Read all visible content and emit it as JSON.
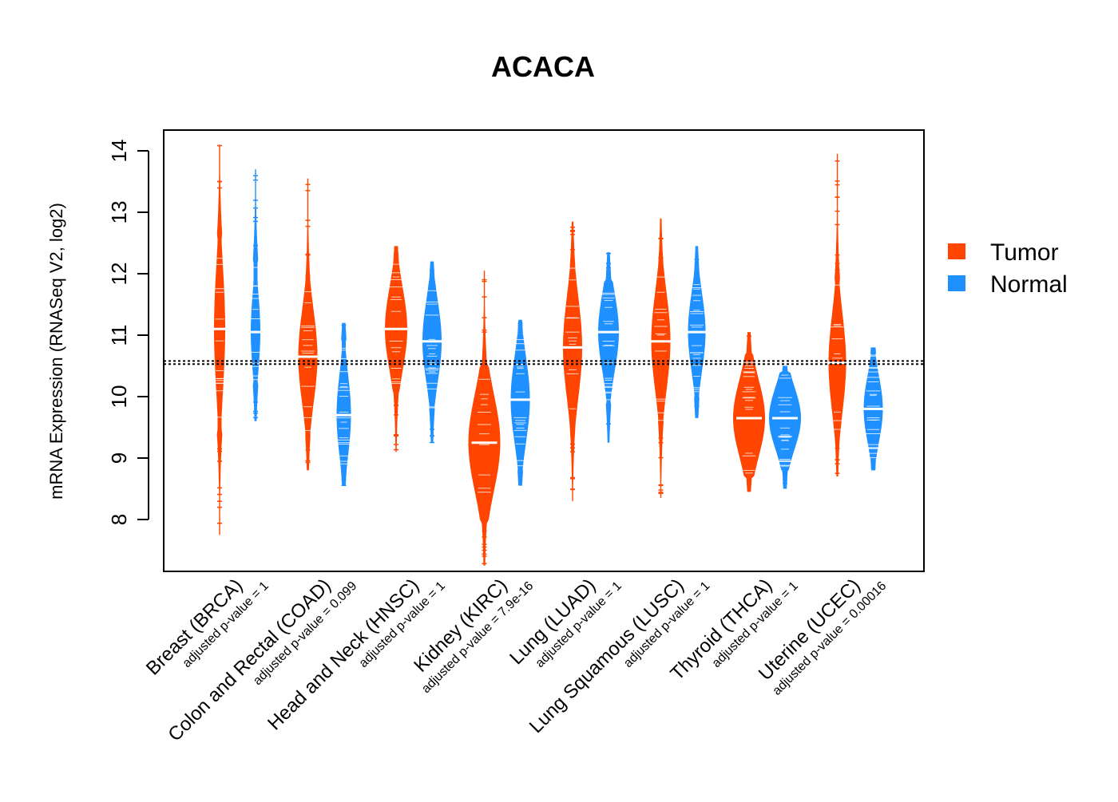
{
  "chart_data": {
    "type": "violin",
    "title": "ACACA",
    "xlabel": "",
    "ylabel": "mRNA Expression (RNASeq V2, log2)",
    "ylim": [
      7.2,
      14.4
    ],
    "yticks": [
      8,
      9,
      10,
      11,
      12,
      13,
      14
    ],
    "reference_lines": [
      10.53,
      10.58
    ],
    "legend": {
      "position": "right",
      "entries": [
        {
          "name": "Tumor",
          "color": "#FF4500"
        },
        {
          "name": "Normal",
          "color": "#1E90FF"
        }
      ]
    },
    "groups": [
      {
        "label": "Breast (BRCA)",
        "pvalue": "adjusted p-value = 1",
        "tumor": {
          "median": 11.1,
          "min": 7.75,
          "max": 14.1,
          "width": 0.35,
          "body": [
            9.4,
            12.6
          ]
        },
        "normal": {
          "median": 11.05,
          "min": 9.6,
          "max": 13.7,
          "width": 0.3,
          "body": [
            10.2,
            12.2
          ]
        }
      },
      {
        "label": "Colon and Rectal (COAD)",
        "pvalue": "adjusted p-value = 0.099",
        "tumor": {
          "median": 10.65,
          "min": 8.8,
          "max": 13.55,
          "width": 0.6,
          "body": [
            9.4,
            11.8
          ]
        },
        "normal": {
          "median": 9.7,
          "min": 8.55,
          "max": 11.2,
          "width": 0.45,
          "body": [
            8.8,
            10.9
          ]
        }
      },
      {
        "label": "Head and Neck (HNSC)",
        "pvalue": "adjusted p-value = 1",
        "tumor": {
          "median": 11.1,
          "min": 9.1,
          "max": 12.45,
          "width": 0.7,
          "body": [
            10.1,
            12.2
          ]
        },
        "normal": {
          "median": 10.9,
          "min": 9.25,
          "max": 12.2,
          "width": 0.6,
          "body": [
            9.8,
            11.9
          ]
        }
      },
      {
        "label": "Kidney (KIRC)",
        "pvalue": "adjusted p-value = 7.9e-16",
        "tumor": {
          "median": 9.25,
          "min": 7.25,
          "max": 12.05,
          "width": 1.0,
          "body": [
            8.0,
            10.5
          ]
        },
        "normal": {
          "median": 9.95,
          "min": 8.55,
          "max": 11.25,
          "width": 0.6,
          "body": [
            8.8,
            11.0
          ]
        }
      },
      {
        "label": "Lung (LUAD)",
        "pvalue": "adjusted p-value = 1",
        "tumor": {
          "median": 10.8,
          "min": 8.3,
          "max": 12.85,
          "width": 0.6,
          "body": [
            9.5,
            12.1
          ]
        },
        "normal": {
          "median": 11.05,
          "min": 9.25,
          "max": 12.35,
          "width": 0.65,
          "body": [
            9.9,
            11.9
          ]
        }
      },
      {
        "label": "Lung Squamous (LUSC)",
        "pvalue": "adjusted p-value = 1",
        "tumor": {
          "median": 10.9,
          "min": 8.35,
          "max": 12.9,
          "width": 0.6,
          "body": [
            9.6,
            12.1
          ]
        },
        "normal": {
          "median": 11.05,
          "min": 9.65,
          "max": 12.45,
          "width": 0.55,
          "body": [
            10.0,
            12.0
          ]
        }
      },
      {
        "label": "Thyroid (THCA)",
        "pvalue": "adjusted p-value = 1",
        "tumor": {
          "median": 9.65,
          "min": 8.45,
          "max": 11.05,
          "width": 1.0,
          "body": [
            8.7,
            10.7
          ]
        },
        "normal": {
          "median": 9.65,
          "min": 8.5,
          "max": 10.5,
          "width": 1.0,
          "body": [
            8.8,
            10.4
          ]
        }
      },
      {
        "label": "Uterine (UCEC)",
        "pvalue": "adjusted p-value = 0.00016",
        "tumor": {
          "median": 10.55,
          "min": 8.7,
          "max": 13.95,
          "width": 0.55,
          "body": [
            9.4,
            11.9
          ]
        },
        "normal": {
          "median": 9.8,
          "min": 8.8,
          "max": 10.8,
          "width": 0.6,
          "body": [
            9.0,
            10.7
          ]
        }
      }
    ]
  }
}
